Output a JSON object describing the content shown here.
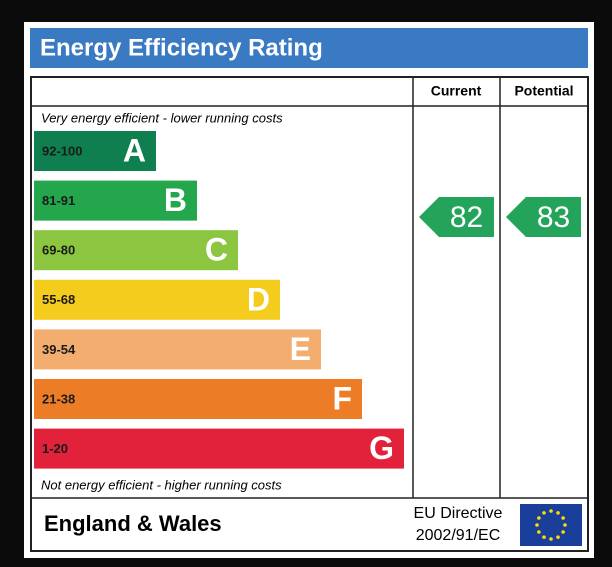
{
  "title": "Energy Efficiency Rating",
  "columns": [
    "Current",
    "Potential"
  ],
  "top_note": "Very energy efficient - lower running costs",
  "bottom_note": "Not energy efficient - higher running costs",
  "bands": [
    {
      "range": "92-100",
      "letter": "A",
      "color": "#0f7f4f"
    },
    {
      "range": "81-91",
      "letter": "B",
      "color": "#23a64c"
    },
    {
      "range": "69-80",
      "letter": "C",
      "color": "#8cc640"
    },
    {
      "range": "55-68",
      "letter": "D",
      "color": "#f4cc1d"
    },
    {
      "range": "39-54",
      "letter": "E",
      "color": "#f3ad6f"
    },
    {
      "range": "21-38",
      "letter": "F",
      "color": "#ec7d26"
    },
    {
      "range": "1-20",
      "letter": "G",
      "color": "#e2213b"
    }
  ],
  "current": 82,
  "potential": 83,
  "arrow_color": "#23a45a",
  "footer": {
    "region": "England & Wales",
    "directive": [
      "EU Directive",
      "2002/91/EC"
    ]
  }
}
